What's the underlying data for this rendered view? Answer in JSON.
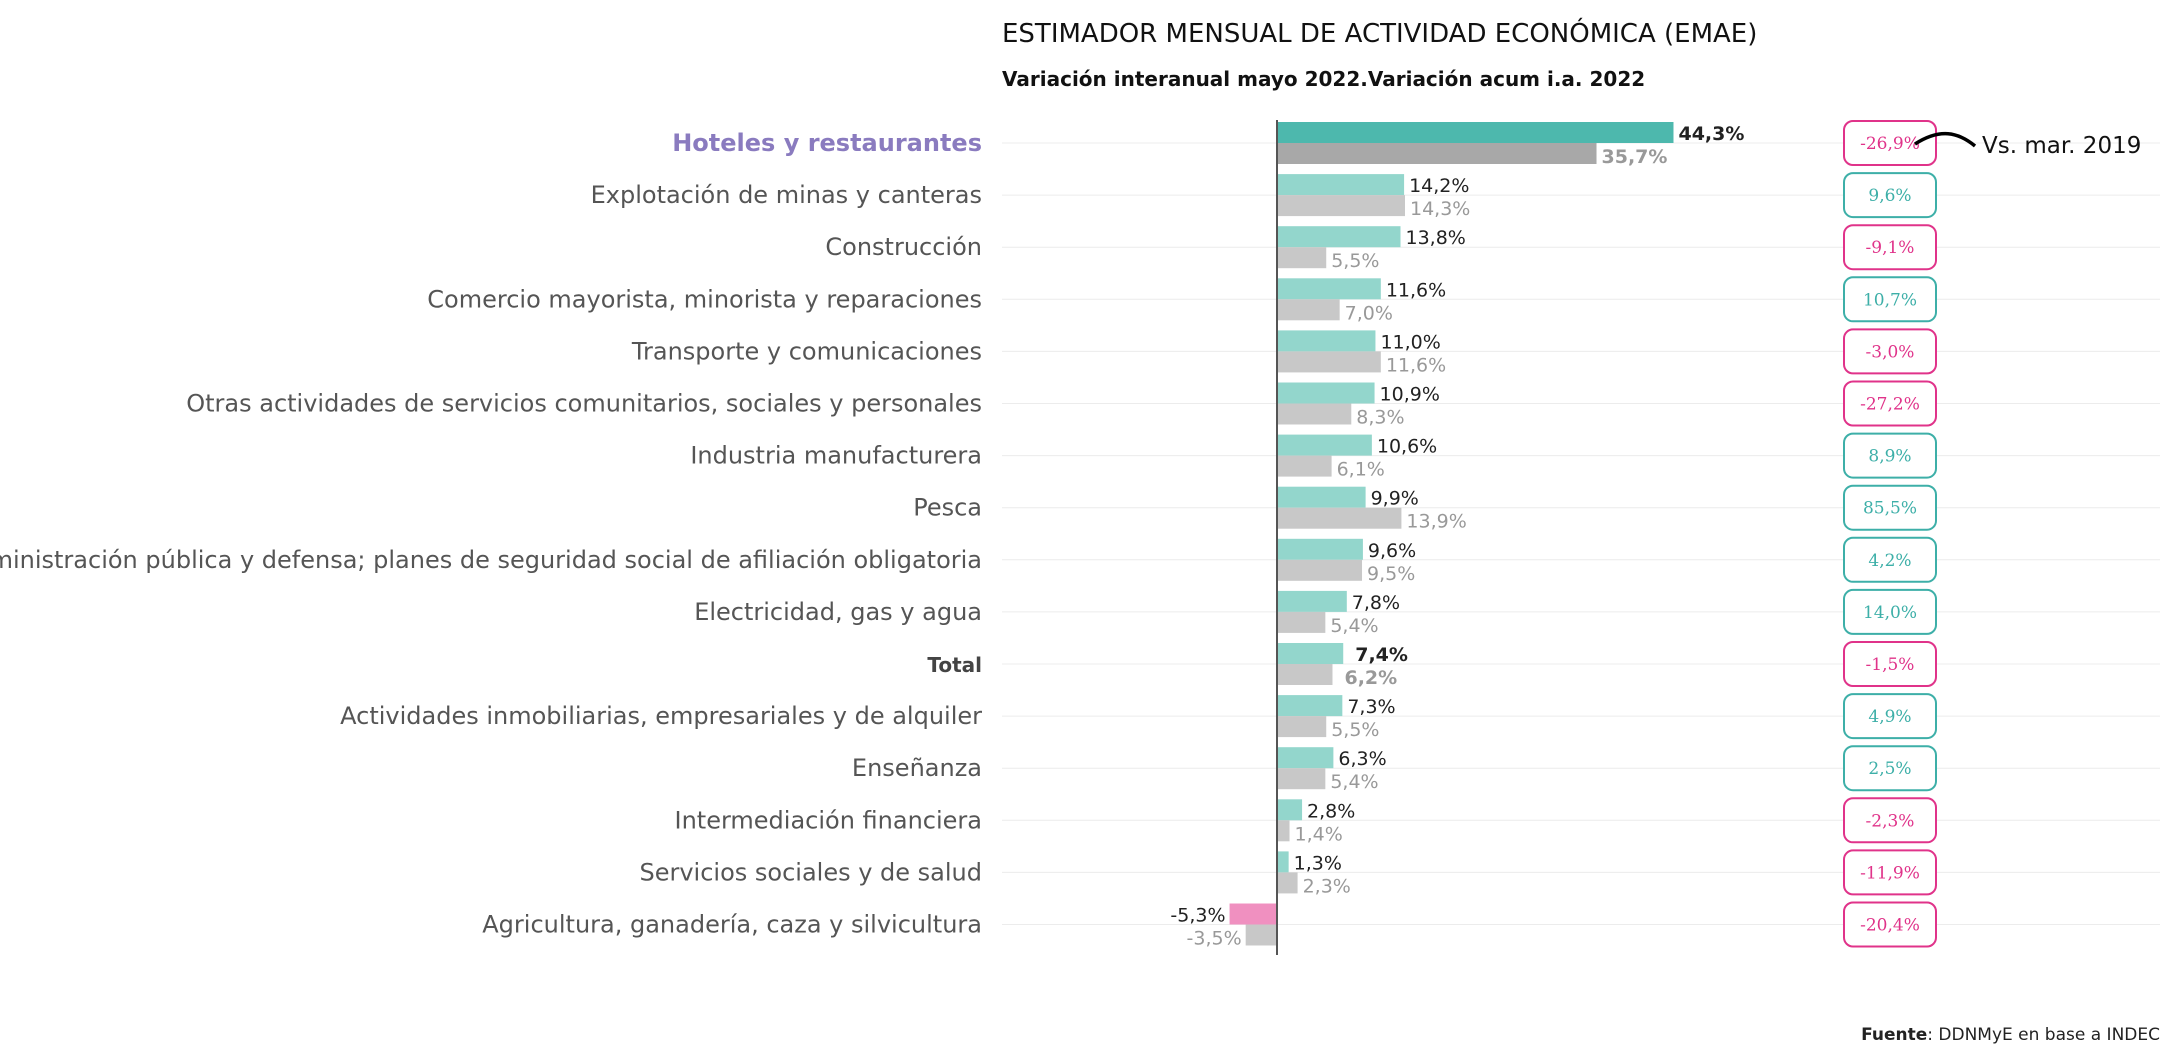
{
  "chart_data": {
    "type": "bar",
    "orientation": "horizontal",
    "title": "ESTIMADOR MENSUAL DE ACTIVIDAD ECONÓMICA (EMAE)",
    "subtitle": "Variación interanual mayo 2022.Variación acum i.a. 2022",
    "categories": [
      "Hoteles y restaurantes",
      "Explotación de minas y canteras",
      "Construcción",
      "Comercio mayorista, minorista y reparaciones",
      "Transporte y comunicaciones",
      "Otras actividades de servicios comunitarios, sociales y personales",
      "Industria manufacturera",
      "Pesca",
      "Administración pública y defensa; planes de seguridad social de afiliación obligatoria",
      "Electricidad, gas y agua",
      "Total",
      "Actividades inmobiliarias, empresariales y de alquiler",
      "Enseñanza",
      "Intermediación financiera",
      "Servicios sociales y de salud",
      "Agricultura, ganadería, caza y silvicultura"
    ],
    "series": [
      {
        "values": [
          44.3,
          14.2,
          13.8,
          11.6,
          11.0,
          10.9,
          10.6,
          9.9,
          9.6,
          7.8,
          7.4,
          7.3,
          6.3,
          2.8,
          1.3,
          -5.3
        ],
        "labels": [
          "44,3%",
          "14,2%",
          "13,8%",
          "11,6%",
          "11,0%",
          "10,9%",
          "10,6%",
          "9,9%",
          "9,6%",
          "7,8%",
          "7,4%",
          "7,3%",
          "6,3%",
          "2,8%",
          "1,3%",
          "-5,3%"
        ]
      },
      {
        "values": [
          35.7,
          14.3,
          5.5,
          7.0,
          11.6,
          8.3,
          6.1,
          13.9,
          9.5,
          5.4,
          6.2,
          5.5,
          5.4,
          1.4,
          2.3,
          -3.5
        ],
        "labels": [
          "35,7%",
          "14,3%",
          "5,5%",
          "7,0%",
          "11,6%",
          "8,3%",
          "6,1%",
          "13,9%",
          "9,5%",
          "5,4%",
          "6,2%",
          "5,5%",
          "5,4%",
          "1,4%",
          "2,3%",
          "-3,5%"
        ]
      },
      {
        "values": [
          -26.9,
          9.6,
          -9.1,
          10.7,
          -3.0,
          -27.2,
          8.9,
          85.5,
          4.2,
          14.0,
          -1.5,
          4.9,
          2.5,
          -2.3,
          -11.9,
          -20.4
        ],
        "labels": [
          "-26,9%",
          "9,6%",
          "-9,1%",
          "10,7%",
          "-3,0%",
          "-27,2%",
          "8,9%",
          "85,5%",
          "4,2%",
          "14,0%",
          "-1,5%",
          "4,9%",
          "2,5%",
          "-2,3%",
          "-11,9%",
          "-20,4%"
        ]
      }
    ],
    "annotation": "Vs. mar. 2019",
    "highlight_category": "Hoteles y restaurantes",
    "total_category": "Total",
    "grid": true,
    "source_label": "Fuente",
    "source_text": ": DDNMyE en base a INDEC"
  },
  "colors": {
    "bar_highlight": "#4db8ad",
    "bar_main": "#93d6cc",
    "bar_negative": "#f090c0",
    "bar_acum": "#c8c8c8",
    "bar_acum_highlight": "#a8a8a8",
    "badge_positive": "#3dafa8",
    "badge_negative": "#e0338a",
    "category_highlight": "#8a7bbf"
  }
}
